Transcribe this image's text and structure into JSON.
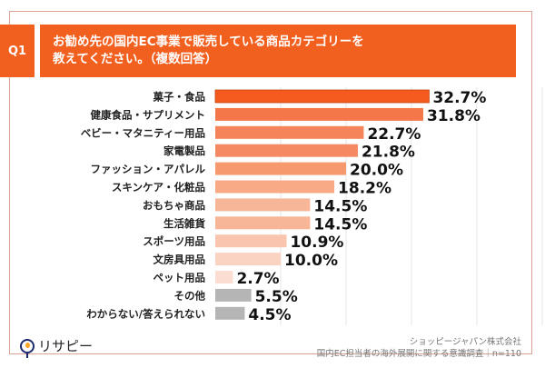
{
  "header": {
    "q_label": "Q1",
    "title_line1": "お勧め先の国内EC事業で販売している商品カテゴリーを",
    "title_line2": "教えてください。（複数回答）"
  },
  "footer": {
    "company": "ショッピージャパン株式会社",
    "survey": "国内EC担当者の海外展開に関する意識調査｜n=110",
    "logo_text": "リサピー"
  },
  "chart_data": {
    "type": "bar",
    "orientation": "horizontal",
    "unit": "%",
    "grid": true,
    "xlim": [
      0,
      50
    ],
    "categories": [
      "菓子・食品",
      "健康食品・サプリメント",
      "ベビー・マタニティー用品",
      "家電製品",
      "ファッション・アパレル",
      "スキンケア・化粧品",
      "おもちゃ商品",
      "生活雑貨",
      "スポーツ用品",
      "文房具用品",
      "ペット用品",
      "その他",
      "わからない/答えられない"
    ],
    "values": [
      32.7,
      31.8,
      22.7,
      21.8,
      20.0,
      18.2,
      14.5,
      14.5,
      10.9,
      10.0,
      2.7,
      5.5,
      4.5
    ],
    "labels": [
      "32.7%",
      "31.8%",
      "22.7%",
      "21.8%",
      "20.0%",
      "18.2%",
      "14.5%",
      "14.5%",
      "10.9%",
      "10.0%",
      "2.7%",
      "5.5%",
      "4.5%"
    ],
    "colors": [
      "#f55a1e",
      "#f4774a",
      "#f5845a",
      "#f58a62",
      "#f6996f",
      "#f7aa85",
      "#f8b699",
      "#f8b699",
      "#f9c5ae",
      "#fad3c2",
      "#fbddd2",
      "#b5b5b5",
      "#b5b5b5"
    ]
  }
}
